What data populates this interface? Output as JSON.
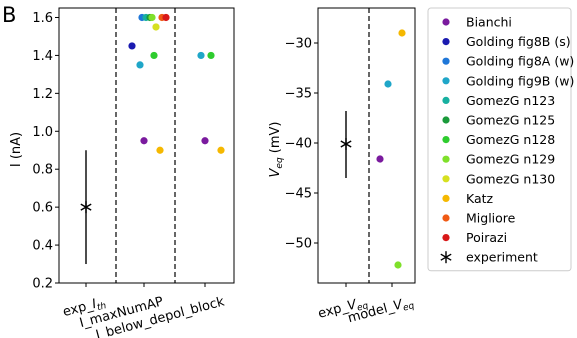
{
  "panel_label": "B",
  "chart_data": [
    {
      "type": "scatter",
      "ylabel": "I (nA)",
      "ylim": [
        0.2,
        1.65
      ],
      "yticks": [
        "0.2",
        "0.4",
        "0.6",
        "0.8",
        "1.0",
        "1.2",
        "1.4",
        "1.6"
      ],
      "xcategories": [
        {
          "label": "exp_I_th",
          "main": "exp_",
          "italic": "I",
          "sub": "th"
        },
        {
          "label": "I_maxNumAP",
          "main": "I_maxNumAP"
        },
        {
          "label": "I_below_depol_block",
          "main": "I_below_depol_block"
        }
      ],
      "experiment": {
        "category": 0,
        "mean": 0.6,
        "low": 0.3,
        "high": 0.9
      },
      "series": [
        {
          "name": "Bianchi",
          "color": "#7a1a9e",
          "values": [
            null,
            0.95,
            0.95
          ]
        },
        {
          "name": "Golding fig8B (s)",
          "color": "#1a1ab0",
          "values": [
            null,
            1.45,
            null
          ]
        },
        {
          "name": "Golding fig8A (w)",
          "color": "#1f77d8",
          "values": [
            null,
            1.6,
            null
          ]
        },
        {
          "name": "Golding fig9B (w)",
          "color": "#1fa6c8",
          "values": [
            null,
            1.35,
            1.4
          ]
        },
        {
          "name": "GomezG n123",
          "color": "#17b0a0",
          "values": [
            null,
            1.6,
            null
          ]
        },
        {
          "name": "GomezG n125",
          "color": "#1a9a3a",
          "values": [
            null,
            1.6,
            null
          ]
        },
        {
          "name": "GomezG n128",
          "color": "#2ecc2e",
          "values": [
            null,
            1.4,
            1.4
          ]
        },
        {
          "name": "GomezG n129",
          "color": "#7fe02a",
          "values": [
            null,
            1.6,
            null
          ]
        },
        {
          "name": "GomezG n130",
          "color": "#d6e020",
          "values": [
            null,
            1.55,
            null
          ]
        },
        {
          "name": "Katz",
          "color": "#f5b800",
          "values": [
            null,
            0.9,
            0.9
          ]
        },
        {
          "name": "Migliore",
          "color": "#f05a14",
          "values": [
            null,
            1.6,
            null
          ]
        },
        {
          "name": "Poirazi",
          "color": "#d81818",
          "values": [
            null,
            1.6,
            null
          ]
        }
      ]
    },
    {
      "type": "scatter",
      "ylabel": "V_eq (mV)",
      "ylim": [
        -54,
        -26.5
      ],
      "yticks": [
        "-50",
        "-45",
        "-40",
        "-35",
        "-30"
      ],
      "xcategories": [
        {
          "label": "exp_V_eq",
          "main": "exp_",
          "italic": "V",
          "sub": "eq"
        },
        {
          "label": "model_V_eq",
          "main": "model_",
          "italic": "V",
          "sub": "eq"
        }
      ],
      "experiment": {
        "category": 0,
        "mean": -40.1,
        "low": -43.5,
        "high": -36.8
      },
      "model_points": [
        {
          "name": "Bianchi",
          "color": "#7a1a9e",
          "value": -41.6
        },
        {
          "name": "Golding fig9B (w)",
          "color": "#1fa6c8",
          "value": -34.1
        },
        {
          "name": "GomezG n129",
          "color": "#7fe02a",
          "value": -52.2
        },
        {
          "name": "Katz",
          "color": "#f5b800",
          "value": -29.0
        }
      ]
    }
  ],
  "legend": {
    "placement": "right",
    "entries": [
      {
        "label": "Bianchi",
        "color": "#7a1a9e",
        "marker": "dot"
      },
      {
        "label": "Golding fig8B (s)",
        "color": "#1a1ab0",
        "marker": "dot"
      },
      {
        "label": "Golding fig8A (w)",
        "color": "#1f77d8",
        "marker": "dot"
      },
      {
        "label": "Golding fig9B (w)",
        "color": "#1fa6c8",
        "marker": "dot"
      },
      {
        "label": "GomezG n123",
        "color": "#17b0a0",
        "marker": "dot"
      },
      {
        "label": "GomezG n125",
        "color": "#1a9a3a",
        "marker": "dot"
      },
      {
        "label": "GomezG n128",
        "color": "#2ecc2e",
        "marker": "dot"
      },
      {
        "label": "GomezG n129",
        "color": "#7fe02a",
        "marker": "dot"
      },
      {
        "label": "GomezG n130",
        "color": "#d6e020",
        "marker": "dot"
      },
      {
        "label": "Katz",
        "color": "#f5b800",
        "marker": "dot"
      },
      {
        "label": "Migliore",
        "color": "#f05a14",
        "marker": "dot"
      },
      {
        "label": "Poirazi",
        "color": "#d81818",
        "marker": "dot"
      },
      {
        "label": "experiment",
        "color": "#000000",
        "marker": "star"
      }
    ]
  }
}
